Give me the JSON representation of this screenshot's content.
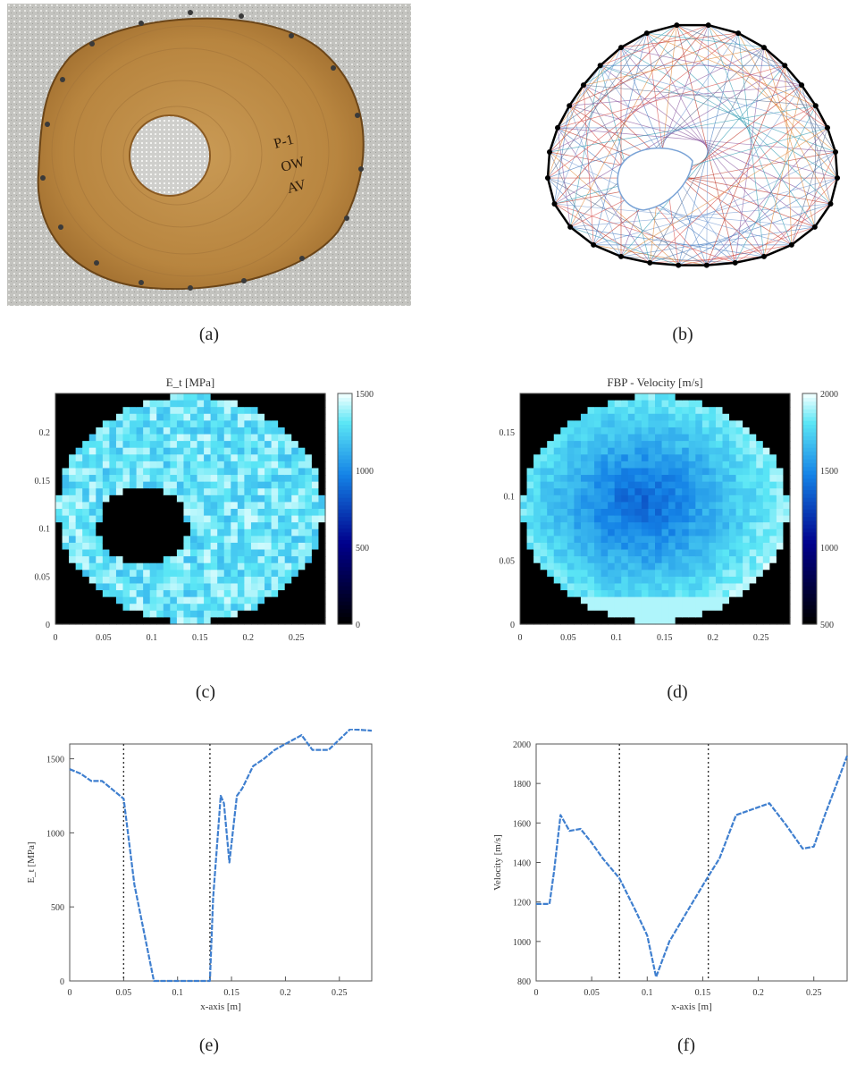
{
  "figure": {
    "captions": [
      "(a)",
      "(b)",
      "(c)",
      "(d)",
      "(e)",
      "(f)"
    ],
    "photo_labels": [
      "P-1",
      "OW",
      "AV"
    ]
  },
  "chart_data": [
    {
      "panel": "c",
      "type": "heatmap",
      "title": "E_t [MPa]",
      "xlabel": "",
      "ylabel": "",
      "xlim": [
        0,
        0.28
      ],
      "ylim": [
        0,
        0.24
      ],
      "x_ticks": [
        "0",
        "0.05",
        "0.1",
        "0.15",
        "0.2",
        "0.25"
      ],
      "y_ticks": [
        "0",
        "0.05",
        "0.1",
        "0.15",
        "0.2"
      ],
      "colorbar": {
        "ticks": [
          "0",
          "500",
          "1000",
          "1500"
        ],
        "range": [
          0,
          1500
        ]
      },
      "grid": false
    },
    {
      "panel": "d",
      "type": "heatmap",
      "title": "FBP - Velocity [m/s]",
      "xlabel": "",
      "ylabel": "",
      "xlim": [
        0,
        0.28
      ],
      "ylim": [
        0,
        0.18
      ],
      "x_ticks": [
        "0",
        "0.05",
        "0.1",
        "0.15",
        "0.2",
        "0.25"
      ],
      "y_ticks": [
        "0",
        "0.05",
        "0.1",
        "0.15"
      ],
      "colorbar": {
        "ticks": [
          "500",
          "1000",
          "1500",
          "2000"
        ],
        "range": [
          500,
          2000
        ]
      },
      "grid": false
    },
    {
      "panel": "e",
      "type": "line",
      "title": "",
      "xlabel": "x-axis [m]",
      "ylabel": "E_t [MPa]",
      "xlim": [
        0,
        0.28
      ],
      "ylim": [
        0,
        1600
      ],
      "x_ticks": [
        "0",
        "0.05",
        "0.1",
        "0.15",
        "0.2",
        "0.25"
      ],
      "y_ticks": [
        "0",
        "500",
        "1000",
        "1500"
      ],
      "vlines": [
        0.05,
        0.13
      ],
      "series": [
        {
          "values": [
            [
              0,
              1430
            ],
            [
              0.01,
              1400
            ],
            [
              0.02,
              1350
            ],
            [
              0.03,
              1350
            ],
            [
              0.04,
              1290
            ],
            [
              0.05,
              1230
            ],
            [
              0.06,
              650
            ],
            [
              0.078,
              0
            ],
            [
              0.13,
              0
            ],
            [
              0.133,
              560
            ],
            [
              0.14,
              1250
            ],
            [
              0.143,
              1200
            ],
            [
              0.148,
              800
            ],
            [
              0.155,
              1250
            ],
            [
              0.16,
              1300
            ],
            [
              0.17,
              1450
            ],
            [
              0.18,
              1500
            ],
            [
              0.19,
              1560
            ],
            [
              0.2,
              1600
            ],
            [
              0.215,
              1660
            ],
            [
              0.225,
              1560
            ],
            [
              0.24,
              1560
            ],
            [
              0.26,
              1700
            ],
            [
              0.28,
              1690
            ]
          ]
        }
      ],
      "grid": false
    },
    {
      "panel": "f",
      "type": "line",
      "title": "",
      "xlabel": "x-axis [m]",
      "ylabel": "Velocity [m/s]",
      "xlim": [
        0,
        0.28
      ],
      "ylim": [
        800,
        2000
      ],
      "x_ticks": [
        "0",
        "0.05",
        "0.1",
        "0.15",
        "0.2",
        "0.25"
      ],
      "y_ticks": [
        "800",
        "1000",
        "1200",
        "1400",
        "1600",
        "1800",
        "2000"
      ],
      "vlines": [
        0.075,
        0.155
      ],
      "series": [
        {
          "values": [
            [
              0,
              1190
            ],
            [
              0.012,
              1190
            ],
            [
              0.016,
              1350
            ],
            [
              0.022,
              1640
            ],
            [
              0.03,
              1560
            ],
            [
              0.04,
              1570
            ],
            [
              0.05,
              1500
            ],
            [
              0.06,
              1420
            ],
            [
              0.075,
              1320
            ],
            [
              0.09,
              1150
            ],
            [
              0.1,
              1030
            ],
            [
              0.108,
              820
            ],
            [
              0.12,
              1000
            ],
            [
              0.14,
              1190
            ],
            [
              0.155,
              1330
            ],
            [
              0.165,
              1420
            ],
            [
              0.18,
              1640
            ],
            [
              0.195,
              1670
            ],
            [
              0.21,
              1700
            ],
            [
              0.225,
              1590
            ],
            [
              0.24,
              1470
            ],
            [
              0.25,
              1480
            ],
            [
              0.26,
              1640
            ],
            [
              0.272,
              1820
            ],
            [
              0.28,
              1940
            ]
          ]
        }
      ],
      "grid": false
    }
  ]
}
